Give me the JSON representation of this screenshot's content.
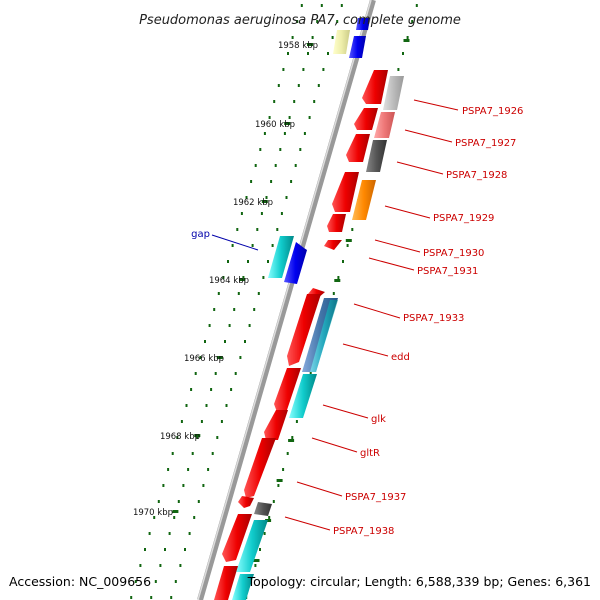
{
  "title": "Pseudomonas aeruginosa PA7, complete genome",
  "footer": {
    "accession": "Accession: NC_009656",
    "topology": "Topology: circular; Length: 6,588,339 bp; Genes: 6,361"
  },
  "colors": {
    "red": "#ee0000",
    "cyan": "#11cccc",
    "blue": "#0000ee",
    "backbone": "#888888",
    "tick": "#116611",
    "label_red": "#cc0000",
    "label_blue": "#0000aa"
  },
  "scale_labels": [
    "1958 kbp",
    "1960 kbp",
    "1962 kbp",
    "1964 kbp",
    "1966 kbp",
    "1968 kbp",
    "1970 kbp"
  ],
  "gene_labels": [
    "gap",
    "PSPA7_1926",
    "PSPA7_1927",
    "PSPA7_1928",
    "PSPA7_1929",
    "PSPA7_1930",
    "PSPA7_1931",
    "PSPA7_1933",
    "edd",
    "glk",
    "gltR",
    "PSPA7_1937",
    "PSPA7_1938"
  ]
}
